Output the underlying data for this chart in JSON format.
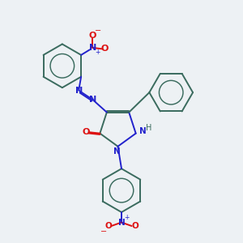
{
  "background_color": "#edf1f4",
  "bond_color": "#3a6b5e",
  "n_color": "#2222cc",
  "o_color": "#dd1111",
  "text_color_dark": "#3a6b5e",
  "figsize": [
    3.0,
    3.0
  ],
  "dpi": 100,
  "xlim": [
    0,
    10
  ],
  "ylim": [
    0,
    10
  ]
}
